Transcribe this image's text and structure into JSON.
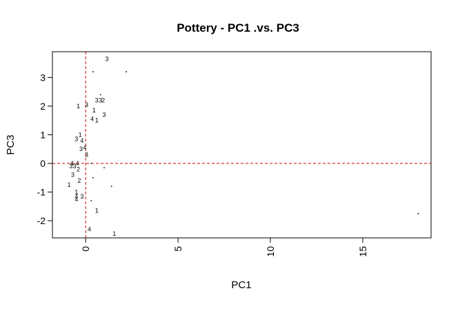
{
  "chart_data": {
    "type": "scatter",
    "title": "Pottery - PC1 .vs. PC3",
    "xlabel": "PC1",
    "ylabel": "PC3",
    "xlim": [
      -1.8,
      18.7
    ],
    "ylim": [
      -2.6,
      3.9
    ],
    "x_ticks": [
      0,
      5,
      10,
      15
    ],
    "y_ticks": [
      -2,
      -1,
      0,
      1,
      2,
      3
    ],
    "x_tick_labels": [
      "0",
      "5",
      "10",
      "15"
    ],
    "y_tick_labels": [
      "-2",
      "-1",
      "0",
      "1",
      "2",
      "3"
    ],
    "reference_lines": {
      "x": 0,
      "y": 0,
      "color": "#cc0000",
      "style": "dashed"
    },
    "labeled_points": [
      {
        "x": 1.15,
        "y": 3.65,
        "label": "3"
      },
      {
        "x": -0.4,
        "y": 2.0,
        "label": "1"
      },
      {
        "x": 0.05,
        "y": 2.05,
        "label": "3"
      },
      {
        "x": 0.6,
        "y": 2.2,
        "label": "3"
      },
      {
        "x": 0.8,
        "y": 2.2,
        "label": "3"
      },
      {
        "x": 0.95,
        "y": 2.2,
        "label": "2"
      },
      {
        "x": 0.45,
        "y": 1.85,
        "label": "1"
      },
      {
        "x": 1.0,
        "y": 1.7,
        "label": "3"
      },
      {
        "x": 0.35,
        "y": 1.55,
        "label": "4"
      },
      {
        "x": 0.6,
        "y": 1.5,
        "label": "1"
      },
      {
        "x": -0.3,
        "y": 1.0,
        "label": "1"
      },
      {
        "x": -0.5,
        "y": 0.85,
        "label": "3"
      },
      {
        "x": -0.2,
        "y": 0.8,
        "label": "4"
      },
      {
        "x": -0.25,
        "y": 0.5,
        "label": "3"
      },
      {
        "x": -0.05,
        "y": 0.55,
        "label": "4"
      },
      {
        "x": 0.05,
        "y": 0.3,
        "label": "3"
      },
      {
        "x": -0.75,
        "y": 0.0,
        "label": "4"
      },
      {
        "x": -0.45,
        "y": 0.0,
        "label": "4"
      },
      {
        "x": -0.8,
        "y": -0.1,
        "label": "3"
      },
      {
        "x": -0.6,
        "y": -0.1,
        "label": "3"
      },
      {
        "x": -0.4,
        "y": -0.2,
        "label": "2"
      },
      {
        "x": -0.7,
        "y": -0.4,
        "label": "3"
      },
      {
        "x": -0.35,
        "y": -0.6,
        "label": "2"
      },
      {
        "x": -0.9,
        "y": -0.75,
        "label": "1"
      },
      {
        "x": -0.5,
        "y": -1.0,
        "label": "1"
      },
      {
        "x": -0.5,
        "y": -1.15,
        "label": "4"
      },
      {
        "x": -0.2,
        "y": -1.15,
        "label": "3"
      },
      {
        "x": -0.5,
        "y": -1.25,
        "label": "4"
      },
      {
        "x": 0.6,
        "y": -1.65,
        "label": "1"
      },
      {
        "x": 0.2,
        "y": -2.3,
        "label": "4"
      },
      {
        "x": 1.55,
        "y": -2.45,
        "label": "1"
      }
    ],
    "unlabeled_points": [
      {
        "x": 2.2,
        "y": 3.2
      },
      {
        "x": 0.4,
        "y": 3.2
      },
      {
        "x": 0.8,
        "y": 2.4
      },
      {
        "x": 0.3,
        "y": 0.0
      },
      {
        "x": 1.0,
        "y": -0.15
      },
      {
        "x": 0.4,
        "y": -0.5
      },
      {
        "x": 1.4,
        "y": -0.8
      },
      {
        "x": 0.3,
        "y": -1.3
      },
      {
        "x": 18.0,
        "y": -1.75
      }
    ]
  }
}
